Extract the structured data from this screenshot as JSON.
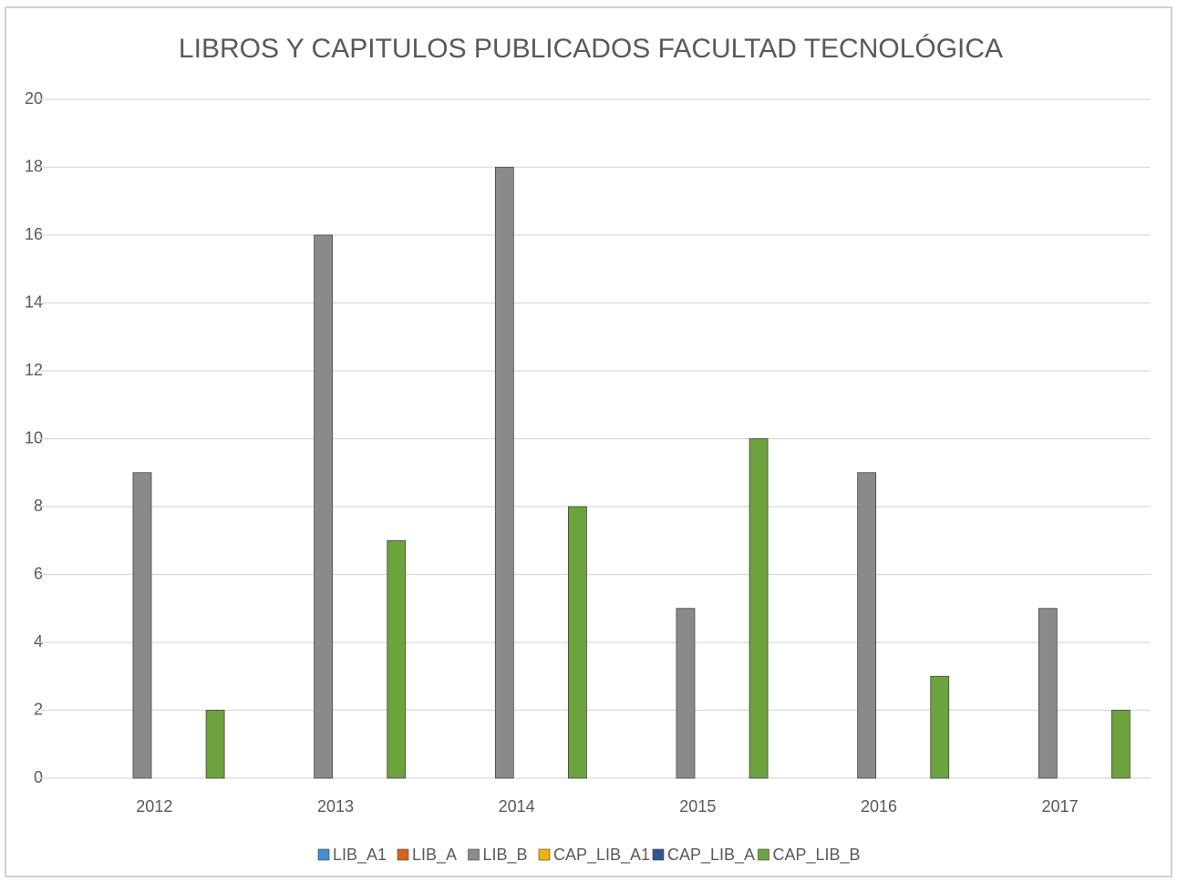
{
  "chart_data": {
    "type": "bar",
    "title": "LIBROS Y CAPITULOS PUBLICADOS FACULTAD TECNOLÓGICA",
    "categories": [
      "2012",
      "2013",
      "2014",
      "2015",
      "2016",
      "2017"
    ],
    "series": [
      {
        "name": "LIB_A1",
        "color": "#3f8fd0",
        "values": [
          0,
          0,
          0,
          0,
          0,
          0
        ]
      },
      {
        "name": "LIB_A",
        "color": "#d5651a",
        "values": [
          0,
          0,
          0,
          0,
          0,
          0
        ]
      },
      {
        "name": "LIB_B",
        "color": "#8a8a8a",
        "values": [
          9,
          16,
          18,
          5,
          9,
          5
        ]
      },
      {
        "name": "CAP_LIB_A1",
        "color": "#f0b400",
        "values": [
          0,
          0,
          0,
          0,
          0,
          0
        ]
      },
      {
        "name": "CAP_LIB_A",
        "color": "#2f5597",
        "values": [
          0,
          0,
          0,
          0,
          0,
          0
        ]
      },
      {
        "name": "CAP_LIB_B",
        "color": "#6ca33c",
        "values": [
          2,
          7,
          8,
          10,
          3,
          2
        ]
      }
    ],
    "ylim": [
      0,
      20
    ],
    "yticks": [
      0,
      2,
      4,
      6,
      8,
      10,
      12,
      14,
      16,
      18,
      20
    ],
    "grid": true,
    "legend": "bottom"
  }
}
